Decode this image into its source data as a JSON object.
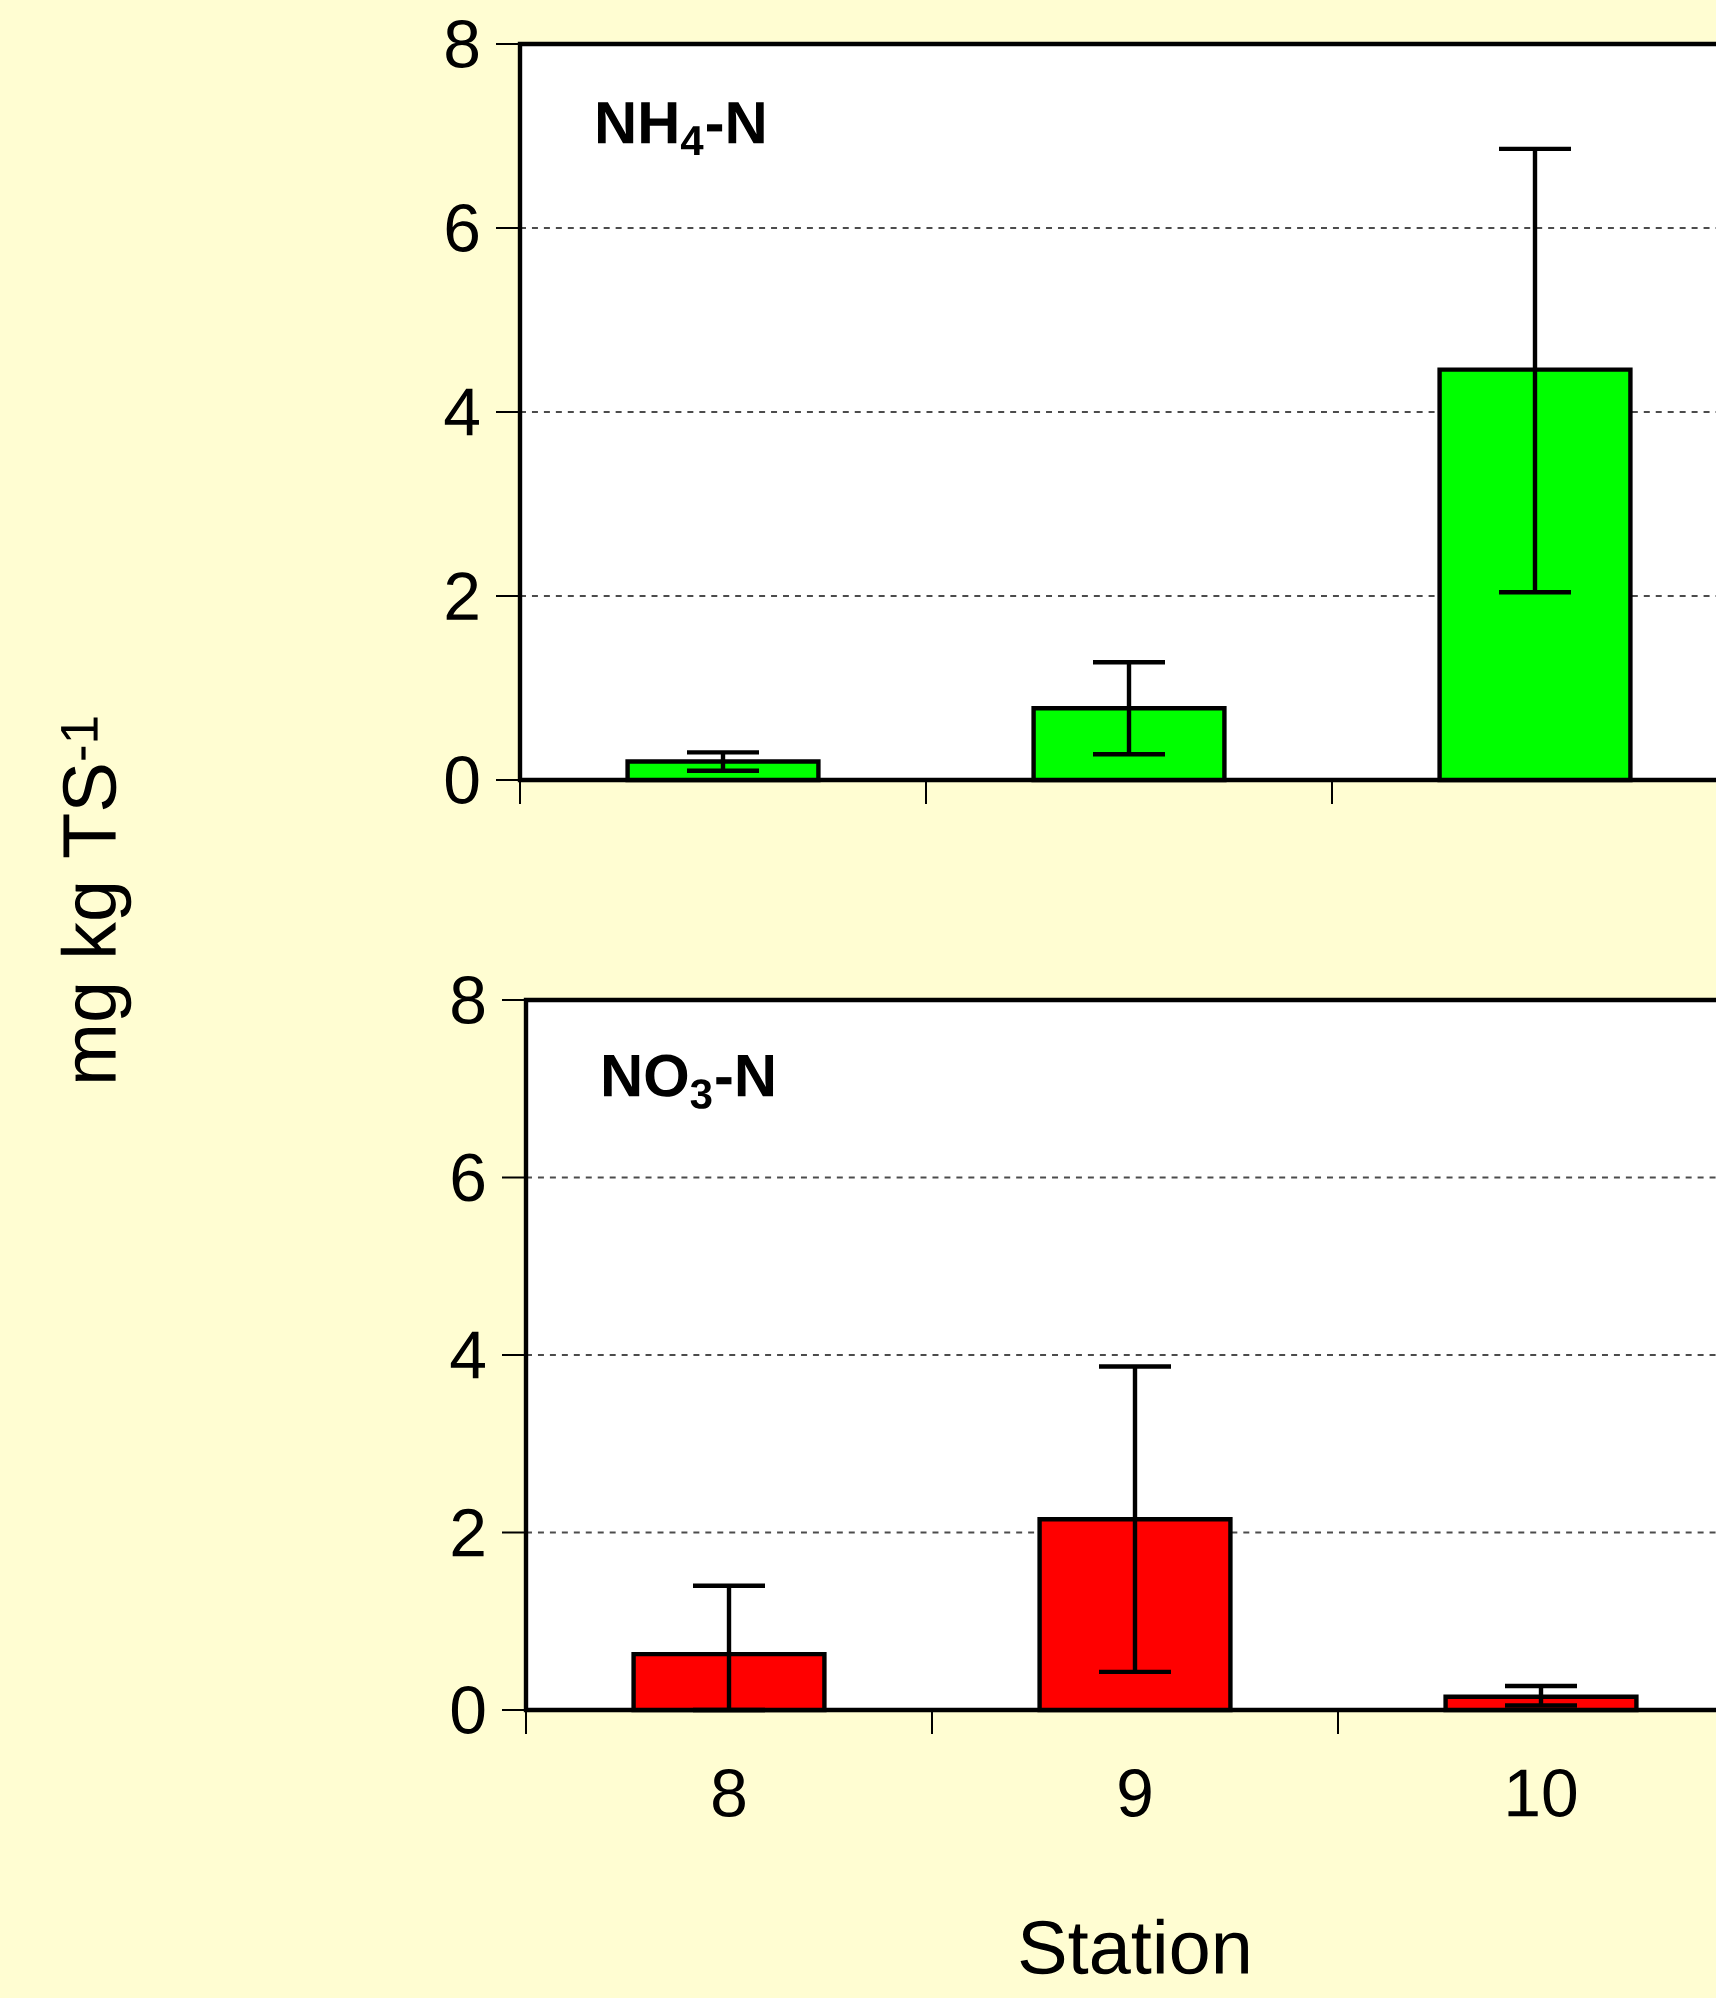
{
  "chart_data": [
    {
      "type": "bar",
      "title": "NH$_{4}$-N",
      "ylabel": "mg kg TS$^{-1}$",
      "categories": [
        "8",
        "9",
        "10"
      ],
      "values": [
        0.2,
        0.78,
        4.46
      ],
      "color": "#00ff00",
      "errors": [
        0.1,
        [
          0.28,
          1.28
        ],
        [
          2.04,
          6.86
        ]
      ],
      "ylim": [
        0,
        8
      ],
      "yticks": [
        0,
        2,
        4,
        6,
        8
      ],
      "grid": "y",
      "tick_labels": "y"
    },
    {
      "type": "bar",
      "title": "NO$_{3}$-N",
      "xlabel": "Station",
      "categories": [
        "8",
        "9",
        "10"
      ],
      "values": [
        0.63,
        2.15,
        0.15
      ],
      "color": "#ff0000",
      "errors": [
        [
          0,
          1.4
        ],
        [
          0.43,
          3.87
        ],
        [
          0.05,
          0.27
        ]
      ],
      "ylim": [
        0,
        8
      ],
      "yticks": [
        0,
        2,
        4,
        6,
        8
      ],
      "grid": "y"
    }
  ]
}
